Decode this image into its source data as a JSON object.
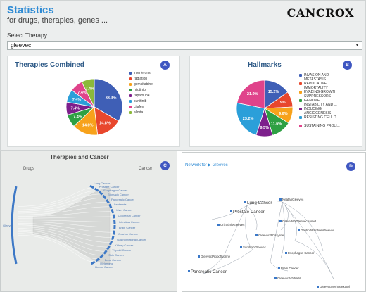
{
  "app": {
    "title": "Statistics",
    "subtitle": "for drugs, therapies, genes ...",
    "logo": "CANCROX"
  },
  "therapy_select": {
    "label": "Select Therapy",
    "value": "gleevec"
  },
  "colors": {
    "accent": "#2f8bd4",
    "badge": "#3f57c1",
    "card_title": "#2e5a87"
  },
  "chart_data": [
    {
      "type": "pie",
      "title": "Therapies Combined",
      "badge": "A",
      "labels": [
        "interferons",
        "radiation",
        "gemcitabine",
        "nilotinib",
        "rapamune",
        "sunitinib",
        "cilafen",
        "alimta"
      ],
      "values": [
        33.3,
        14.8,
        14.8,
        7.4,
        7.4,
        7.4,
        7.4,
        7.4
      ],
      "data_labels": [
        "33.3%",
        "14.8%",
        "14.8%",
        "7.4%",
        "7.4%",
        "7.4%",
        "7.4%",
        "7.4%"
      ],
      "colors": [
        "#3f5fb6",
        "#e8472d",
        "#f7a21b",
        "#2ea043",
        "#7d1f8c",
        "#2b9fd9",
        "#e0438b",
        "#8bb93a"
      ],
      "legend_position": "right"
    },
    {
      "type": "pie",
      "title": "Hallmarks",
      "badge": "B",
      "labels": [
        [
          "INVASION AND",
          "METASTASIS"
        ],
        [
          "REPLICATIVE",
          "IMMORTALITY"
        ],
        [
          "EVADING GROWTH",
          "SUPPRESSORS"
        ],
        [
          "GENOME",
          "INSTABILITY AND ..."
        ],
        [
          "INDUCING",
          "ANGIOGENESIS"
        ],
        [
          "RESISTING CELL D..."
        ],
        [
          "SUSTAINING PROLI..."
        ]
      ],
      "values": [
        15.2,
        9,
        9.6,
        11.6,
        9.5,
        23.2,
        21.9
      ],
      "data_labels": [
        "15.2%",
        "9%",
        "9.6%",
        "11.6%",
        "9.5%",
        "23.2%",
        "21.9%"
      ],
      "colors": [
        "#3f5fb6",
        "#e8472d",
        "#f7a21b",
        "#2ea043",
        "#7d1f8c",
        "#2b9fd9",
        "#e0438b"
      ],
      "legend_position": "right"
    }
  ],
  "panel_c": {
    "title": "Therapies and Cancer",
    "badge": "C",
    "drugs_label": "Drugs",
    "cancer_label": "Cancer",
    "drug": "Gleevec",
    "cancers": [
      "Lung Cancer",
      "Prostate Cancer",
      "Esophagus Cancer",
      "Stomach Cancer",
      "Pancreatic Cancer",
      "Leukemia",
      "Liver Cancer",
      "Colorectal Cancer",
      "Intestinal Cancer",
      "Brain Cancer",
      "Ovarian Cancer",
      "Gastrointestinal Cancer",
      "Kidney Cancer",
      "Thyroid Cancer",
      "Skin Cancer",
      "Bone Cancer",
      "Melanoma",
      "Breast Cancer"
    ]
  },
  "panel_d": {
    "header_prefix": "Network for",
    "header_drug": "Gleevec",
    "badge": "D",
    "nodes": [
      "Lung Cancer",
      "Prostate Cancer",
      "Pancreatic Cancer",
      "NeatanGleevec",
      "CrizotinibGleevec",
      "GefitinibErlotinibGleevec",
      "CarvedilolGleevecArimid",
      "GleevecRiboxyline",
      "SunitinibGleevec",
      "GleevecPropofluorine",
      "Esophagus Cancer",
      "Brain Cancer",
      "GleevecArbitrazil",
      "GleevecMethotrexatol"
    ]
  }
}
